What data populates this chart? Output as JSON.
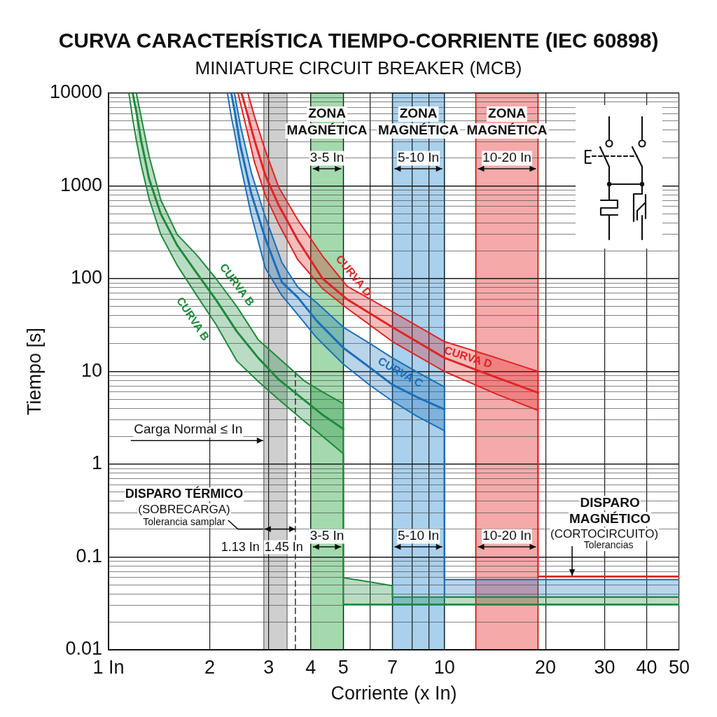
{
  "chart_data": {
    "type": "line",
    "title": "CURVA CARACTERÍSTICA TIEMPO-CORRIENTE (IEC 60898)",
    "subtitle": "MINIATURE CIRCUIT BREAKER (MCB)",
    "xlabel": "Corriente (x In)",
    "ylabel": "Tiempo [s]",
    "log": "xy",
    "grid": true,
    "xlim": [
      1,
      50
    ],
    "ylim": [
      0.01,
      10000
    ],
    "xticks": [
      {
        "value": 1,
        "label": "1 In"
      },
      2,
      3,
      4,
      5,
      {
        "value": 6,
        "label": null
      },
      7,
      {
        "value": 8,
        "label": null
      },
      {
        "value": 9,
        "label": null
      },
      10,
      20,
      30,
      40,
      50
    ],
    "yticks": [
      0.01,
      {
        "value": 0.02,
        "label": null
      },
      {
        "value": 0.03,
        "label": null
      },
      {
        "value": 0.04,
        "label": null
      },
      {
        "value": 0.05,
        "label": null
      },
      {
        "value": 0.06,
        "label": null
      },
      {
        "value": 0.07,
        "label": null
      },
      {
        "value": 0.08,
        "label": null
      },
      {
        "value": 0.09,
        "label": null
      },
      0.1,
      {
        "value": 0.2,
        "label": null
      },
      {
        "value": 0.3,
        "label": null
      },
      {
        "value": 0.4,
        "label": null
      },
      {
        "value": 0.5,
        "label": null
      },
      {
        "value": 0.6,
        "label": null
      },
      {
        "value": 0.7,
        "label": null
      },
      {
        "value": 0.8,
        "label": null
      },
      {
        "value": 0.9,
        "label": null
      },
      1,
      {
        "value": 2,
        "label": null
      },
      {
        "value": 3,
        "label": null
      },
      {
        "value": 4,
        "label": null
      },
      {
        "value": 5,
        "label": null
      },
      {
        "value": 6,
        "label": null
      },
      {
        "value": 7,
        "label": null
      },
      {
        "value": 8,
        "label": null
      },
      {
        "value": 9,
        "label": null
      },
      10,
      {
        "value": 20,
        "label": null
      },
      {
        "value": 30,
        "label": null
      },
      {
        "value": 40,
        "label": null
      },
      {
        "value": 50,
        "label": null
      },
      {
        "value": 60,
        "label": null
      },
      {
        "value": 70,
        "label": null
      },
      {
        "value": 80,
        "label": null
      },
      {
        "value": 90,
        "label": null
      },
      100,
      {
        "value": 200,
        "label": null
      },
      {
        "value": 300,
        "label": null
      },
      {
        "value": 400,
        "label": null
      },
      {
        "value": 500,
        "label": null
      },
      {
        "value": 600,
        "label": null
      },
      {
        "value": 700,
        "label": null
      },
      {
        "value": 800,
        "label": null
      },
      {
        "value": 900,
        "label": null
      },
      1000,
      {
        "value": 2000,
        "label": null
      },
      {
        "value": 3000,
        "label": null
      },
      {
        "value": 4000,
        "label": null
      },
      {
        "value": 5000,
        "label": null
      },
      {
        "value": 6000,
        "label": null
      },
      {
        "value": 7000,
        "label": null
      },
      {
        "value": 8000,
        "label": null
      },
      {
        "value": 9000,
        "label": null
      },
      10000
    ],
    "bands": [
      {
        "axis": "x",
        "from": 2.9,
        "to": 3.4,
        "color": "#cfcfcf"
      },
      {
        "axis": "x",
        "from": 4,
        "to": 5,
        "color": "#a3d9ad",
        "label": "ZONA MAGNÉTICA"
      },
      {
        "axis": "x",
        "from": 7,
        "to": 10,
        "color": "#a9d0ec",
        "label": "ZONA MAGNÉTICA"
      },
      {
        "axis": "x",
        "from": 12.4,
        "to": 19,
        "color": "#f5a9a9",
        "label": "ZONA MAGNÉTICA"
      }
    ],
    "series": [
      {
        "name": "CURVA B",
        "color": "#1f8a3c",
        "x": [
          1.18,
          1.21,
          1.25,
          1.32,
          1.43,
          1.6,
          1.83,
          2.09,
          2.41,
          2.79,
          3.21,
          3.83,
          4.34,
          5,
          5,
          7,
          7,
          50
        ],
        "values": [
          10000,
          6300,
          3100,
          1200,
          500,
          230,
          115,
          59,
          27,
          14,
          8.2,
          4.9,
          3.4,
          2.4,
          null,
          null,
          null,
          null
        ],
        "lower": [
          null,
          3100,
          1700,
          730,
          300,
          140,
          66,
          32,
          13,
          7.8,
          5,
          2.9,
          2,
          1.3,
          0.031,
          0.031,
          0.031,
          0.031
        ],
        "upper": [
          null,
          10000,
          5600,
          2100,
          710,
          300,
          180,
          100,
          50,
          22,
          14,
          7.9,
          6,
          4.5,
          0.06,
          0.049,
          0.037,
          0.037
        ]
      },
      {
        "color": "#1f8a3c",
        "x": [
          1.15,
          1.18,
          1.21,
          1.25,
          1.32,
          1.43,
          1.6,
          1.83,
          2.09,
          2.41,
          2.79,
          3.21,
          3.83,
          4.34,
          5,
          5,
          50
        ],
        "values": [
          10000,
          5300,
          3100,
          1700,
          730,
          300,
          140,
          66,
          32,
          13,
          7.8,
          5,
          2.9,
          2,
          1.3,
          0.031,
          0.031
        ]
      },
      {
        "color": "#1f8a3c",
        "x": [
          1.21,
          1.25,
          1.32,
          1.43,
          1.6,
          1.83,
          2.09,
          2.41,
          2.79,
          3.21,
          3.83,
          4.34,
          5,
          5,
          7,
          7,
          50
        ],
        "values": [
          10000,
          5600,
          2100,
          710,
          300,
          180,
          100,
          50,
          22,
          14,
          7.9,
          6,
          4.5,
          0.06,
          0.049,
          0.037,
          0.037
        ]
      },
      {
        "name": "CURVA C",
        "color": "#1b6fb8",
        "x": [
          2.32,
          2.37,
          2.47,
          2.66,
          2.93,
          3.28,
          3.66,
          4.17,
          5,
          6,
          7,
          8.28,
          10,
          10,
          50
        ],
        "values": [
          10000,
          6600,
          2700,
          830,
          270,
          92,
          63,
          35,
          18,
          11,
          7.2,
          5.3,
          3.9,
          null,
          null
        ],
        "lower": [
          null,
          3800,
          1700,
          490,
          130,
          66,
          41,
          23,
          12,
          7.1,
          4.8,
          3.3,
          2.3,
          0.037,
          0.037
        ],
        "upper": [
          null,
          10000,
          4500,
          1400,
          460,
          150,
          81,
          55,
          30,
          20,
          14,
          9.9,
          6.8,
          0.057,
          0.057
        ]
      },
      {
        "color": "#1b6fb8",
        "x": [
          2.26,
          2.32,
          2.37,
          2.47,
          2.66,
          2.93,
          3.28,
          3.66,
          4.17,
          5,
          6,
          7,
          8.28,
          10,
          10,
          50
        ],
        "values": [
          10000,
          5600,
          3800,
          1700,
          490,
          130,
          66,
          41,
          23,
          12,
          7.1,
          4.8,
          3.3,
          2.3,
          0.037,
          0.037
        ]
      },
      {
        "color": "#1b6fb8",
        "x": [
          2.37,
          2.47,
          2.66,
          2.93,
          3.28,
          3.66,
          4.17,
          5,
          6,
          7,
          8.28,
          10,
          10,
          50
        ],
        "values": [
          10000,
          4500,
          1400,
          460,
          150,
          81,
          55,
          30,
          20,
          14,
          9.9,
          6.8,
          0.057,
          0.057
        ]
      },
      {
        "name": "CURVA D",
        "color": "#e02424",
        "x": [
          2.49,
          2.6,
          2.72,
          2.93,
          3.21,
          3.66,
          4.34,
          5.13,
          7,
          10,
          14.3,
          19
        ],
        "values": [
          10000,
          5700,
          3100,
          1300,
          620,
          260,
          100,
          60,
          30,
          14,
          8.6,
          5.9
        ],
        "lower": [
          null,
          3600,
          1800,
          790,
          390,
          160,
          78,
          48,
          21,
          10,
          5.7,
          3.8
        ],
        "upper": [
          null,
          10000,
          5600,
          2400,
          970,
          430,
          175,
          83,
          44,
          21,
          14,
          10
        ]
      },
      {
        "color": "#e02424",
        "x": [
          2.43,
          2.49,
          2.6,
          2.72,
          2.93,
          3.21,
          3.66,
          4.34,
          5.13,
          7,
          10,
          14.3,
          19
        ],
        "values": [
          10000,
          6900,
          3600,
          1800,
          790,
          390,
          160,
          78,
          48,
          21,
          10,
          5.7,
          3.8
        ]
      },
      {
        "color": "#e02424",
        "x": [
          2.6,
          2.72,
          2.93,
          3.21,
          3.66,
          4.34,
          5.13,
          7,
          10,
          14.3,
          19,
          19,
          50
        ],
        "values": [
          10000,
          5600,
          2400,
          970,
          430,
          175,
          83,
          44,
          21,
          14,
          10,
          0.062,
          0.062
        ]
      },
      {
        "color": "#222222",
        "line_style": "dashed",
        "x": [
          3.6,
          3.6
        ],
        "values": [
          10,
          0.01
        ]
      }
    ],
    "annotations": [
      "CURVA B",
      "CURVA D",
      {
        "text": "Carga Normal ≤ In",
        "x": 2.9,
        "y": 1.8
      },
      "DISPARO TÉRMICO",
      "(SOBRECARGA)",
      "Tolerancia samplar",
      {
        "text": "1.13 In",
        "x": 2.9,
        "y": 0.2
      },
      {
        "text": "1.45 In",
        "x": 3.6,
        "y": 0.2
      },
      "3-5 In",
      "5-10 In",
      "10-20 In",
      "3-5 In",
      "5-10 In",
      "10-20 In",
      "DISPARO MAGNÉTICO",
      {
        "text": "(CORTOCIRCUITO)",
        "x": 24,
        "y": 0.062
      },
      "Tolerancias"
    ]
  }
}
